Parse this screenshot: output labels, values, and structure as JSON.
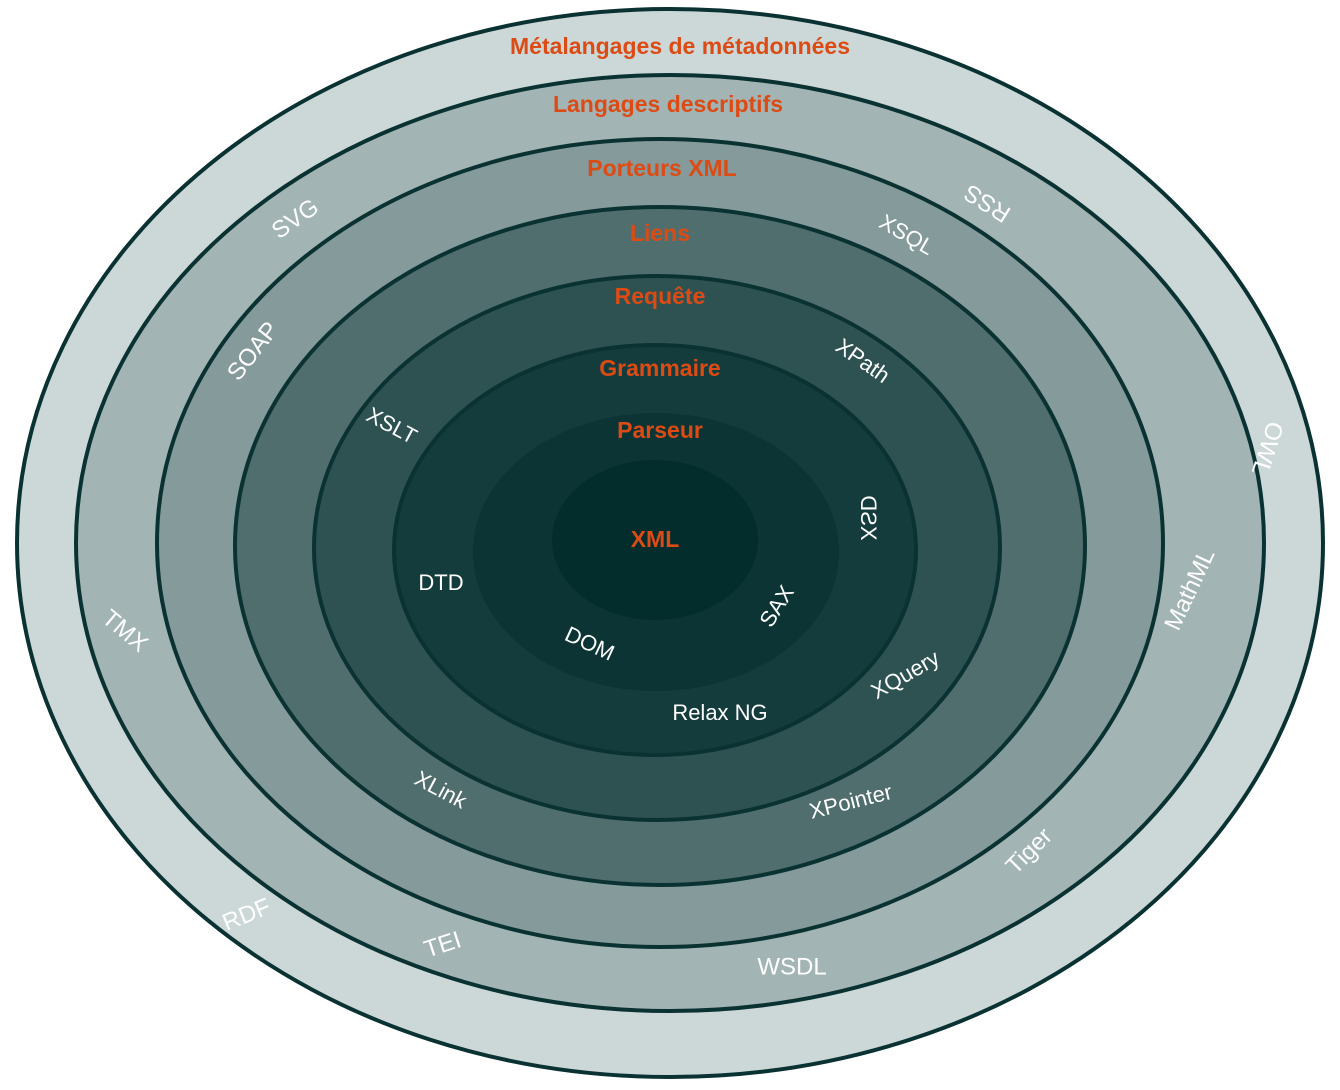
{
  "colors": {
    "accent": "#dd4b14",
    "text_light": "#ffffff",
    "ring_stroke": "#0b3232",
    "rings": [
      "#ccd8d8",
      "#a3b4b4",
      "#859a9a",
      "#516e6e",
      "#2e5252",
      "#153c3c",
      "#0d3434",
      "#032c2c"
    ]
  },
  "layers": {
    "core": "XML",
    "parseur": "Parseur",
    "grammaire": "Grammaire",
    "requete": "Requête",
    "liens": "Liens",
    "porteurs": "Porteurs XML",
    "descriptifs": "Langages descriptifs",
    "metalangages": "Métalangages de métadonnées"
  },
  "technologies": {
    "dom": "DOM",
    "sax": "SAX",
    "dtd": "DTD",
    "xsd": "XSD",
    "relax_ng": "Relax NG",
    "xpath": "XPath",
    "xquery": "XQuery",
    "xslt": "XSLT",
    "xlink": "XLink",
    "xpointer": "XPointer",
    "xsql": "XSQL",
    "svg": "SVG",
    "soap": "SOAP",
    "tmx": "TMX",
    "tei": "TEI",
    "wsdl": "WSDL",
    "tiger": "Tiger",
    "mathml": "MathML",
    "rss": "RSS",
    "owl": "OWL",
    "rdf": "RDF"
  }
}
